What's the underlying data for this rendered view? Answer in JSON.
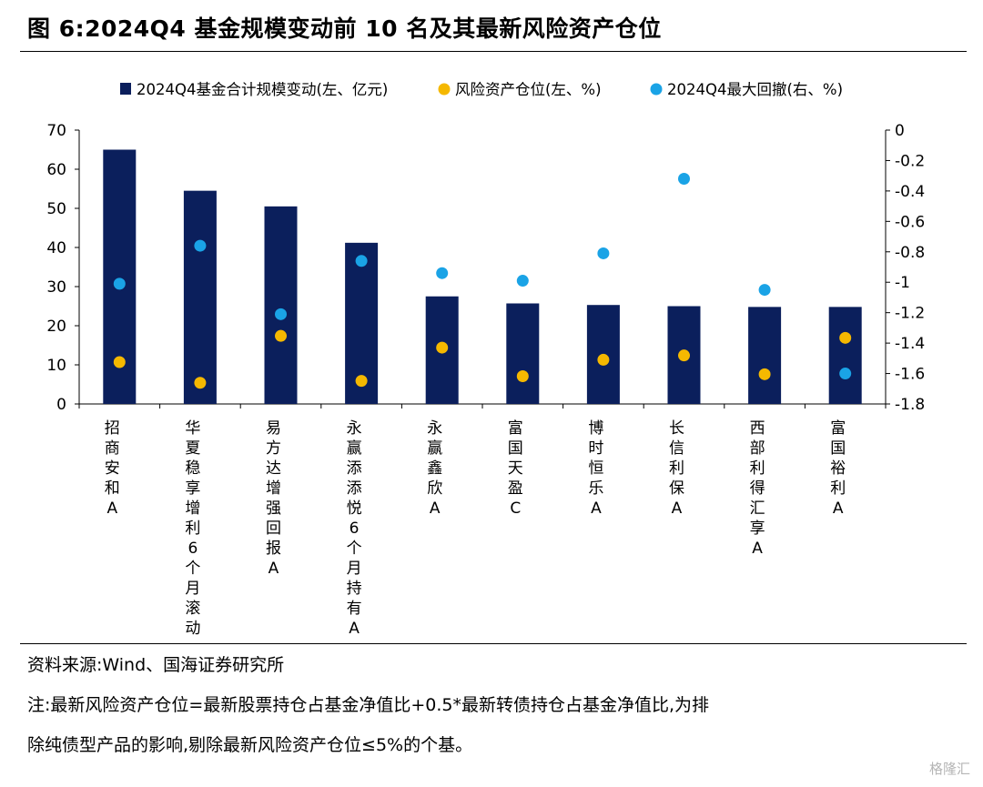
{
  "figure": {
    "title": "图 6:2024Q4 基金规模变动前 10 名及其最新风险资产仓位",
    "source": "资料来源:Wind、国海证券研究所",
    "note_line1": "注:最新风险资产仓位=最新股票持仓占基金净值比+0.5*最新转债持仓占基金净值比,为排",
    "note_line2": "除纯债型产品的影响,剔除最新风险资产仓位≤5%的个基。",
    "watermark": "格隆汇"
  },
  "colors": {
    "bar": "#0b1f5c",
    "risk_position": "#f5b800",
    "max_drawdown": "#1aa3e6"
  },
  "chart_data": {
    "type": "bar",
    "categories": [
      "招商安和A",
      "华夏稳享增利6个月滚动A",
      "易方达增强回报A",
      "永赢添添悦6个月持有A",
      "永赢鑫欣A",
      "富国天盈C",
      "博时恒乐A",
      "长信利保A",
      "西部利得汇享A",
      "富国裕利A"
    ],
    "series": [
      {
        "name": "2024Q4基金合计规模变动(左、亿元)",
        "kind": "bar",
        "axis": "left",
        "values": [
          65.0,
          54.5,
          50.5,
          41.2,
          27.5,
          25.7,
          25.3,
          25.0,
          24.8,
          24.8
        ]
      },
      {
        "name": "风险资产仓位(左、%)",
        "kind": "dot",
        "axis": "left",
        "values": [
          10.7,
          5.4,
          17.4,
          5.9,
          14.4,
          7.1,
          11.3,
          12.4,
          7.6,
          16.9
        ]
      },
      {
        "name": "2024Q4最大回撤(右、%)",
        "kind": "dot",
        "axis": "right",
        "values": [
          -1.01,
          -0.76,
          -1.21,
          -0.86,
          -0.94,
          -0.99,
          -0.81,
          -0.32,
          -1.05,
          -1.6
        ]
      }
    ],
    "left_axis": {
      "min": 0,
      "max": 70,
      "ticks": [
        "0",
        "10",
        "20",
        "30",
        "40",
        "50",
        "60",
        "70"
      ]
    },
    "right_axis": {
      "min": -1.8,
      "max": 0,
      "ticks": [
        "0",
        "-0.2",
        "-0.4",
        "-0.6",
        "-0.8",
        "-1",
        "-1.2",
        "-1.4",
        "-1.6",
        "-1.8"
      ]
    },
    "legend_position": "top",
    "grid": false
  }
}
